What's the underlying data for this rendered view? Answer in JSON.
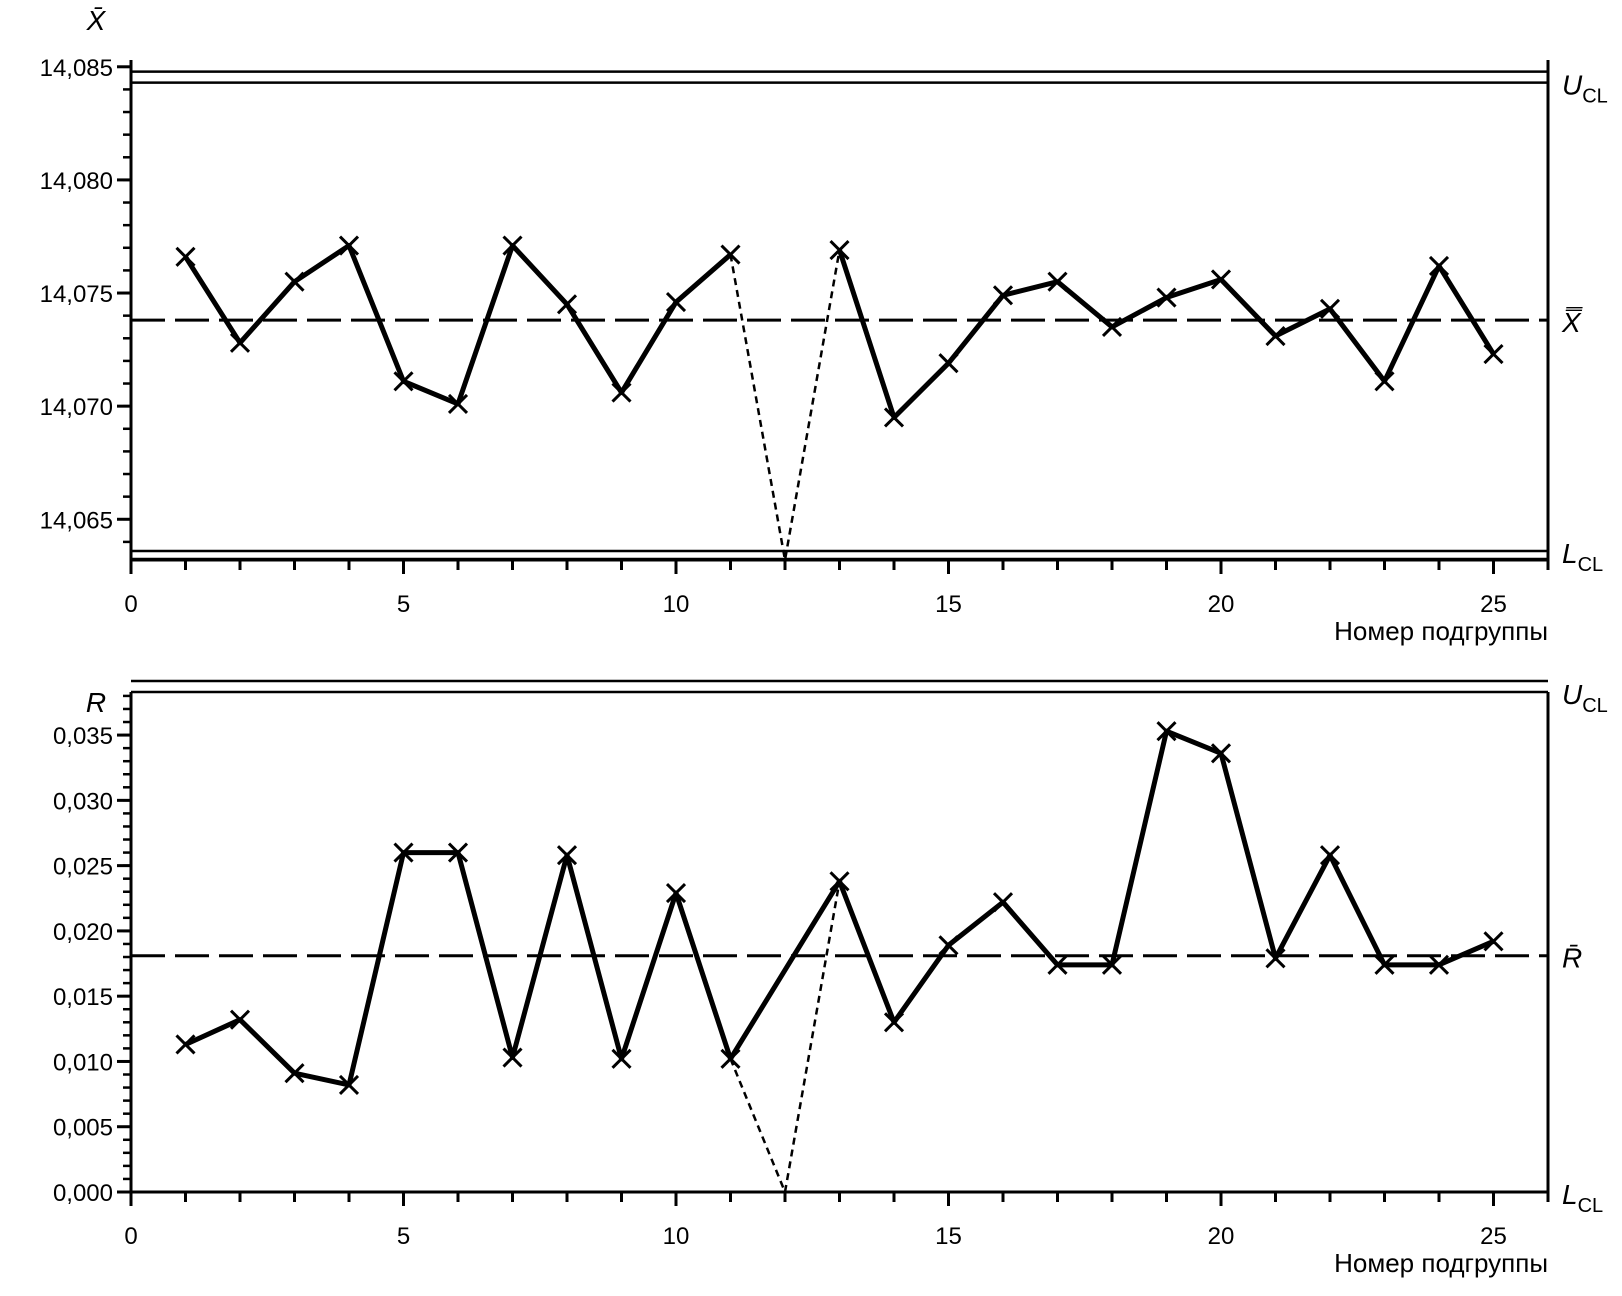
{
  "chart_data": [
    {
      "type": "line",
      "ylabel": "X̄",
      "xlabel": "Номер подгруппы",
      "xlim": [
        0,
        26
      ],
      "ylim": [
        14.0632,
        14.0853
      ],
      "xticks": [
        "0",
        "5",
        "10",
        "15",
        "20",
        "25"
      ],
      "yticks": [
        "14,065",
        "14,070",
        "14,075",
        "14,080",
        "14,085"
      ],
      "ytick_values": [
        14.065,
        14.07,
        14.075,
        14.08,
        14.085
      ],
      "center_line": {
        "label": "X̿",
        "value": 14.0738
      },
      "ucl": {
        "label_main": "U",
        "label_sub": "CL",
        "value": 14.0843
      },
      "lcl": {
        "label_main": "L",
        "label_sub": "CL",
        "value": 14.0636
      },
      "series": [
        {
          "x": [
            1,
            2,
            3,
            4,
            5,
            6,
            7,
            8,
            9,
            10,
            11
          ],
          "values": [
            14.0766,
            14.0728,
            14.0755,
            14.0771,
            14.0711,
            14.0701,
            14.0771,
            14.0745,
            14.0706,
            14.0746,
            14.0767
          ]
        },
        {
          "x": [
            13,
            14,
            15,
            16,
            17,
            18,
            19,
            20,
            21,
            22,
            23,
            24,
            25
          ],
          "values": [
            14.0769,
            14.0695,
            14.0719,
            14.0749,
            14.0755,
            14.0735,
            14.0748,
            14.0756,
            14.0731,
            14.0743,
            14.0711,
            14.0762,
            14.0723
          ]
        }
      ],
      "excluded": {
        "x": 12,
        "value": 14.0632,
        "connect": [
          [
            11,
            14.0767
          ],
          [
            12,
            14.0632
          ],
          [
            13,
            14.0769
          ]
        ]
      },
      "grid": false
    },
    {
      "type": "line",
      "ylabel": "R",
      "xlabel": "Номер подгруппы",
      "xlim": [
        0,
        26
      ],
      "ylim": [
        0,
        0.0383
      ],
      "xticks": [
        "0",
        "5",
        "10",
        "15",
        "20",
        "25"
      ],
      "yticks": [
        "0,000",
        "0,005",
        "0,010",
        "0,015",
        "0,020",
        "0,025",
        "0,030",
        "0,035"
      ],
      "ytick_values": [
        0,
        0.005,
        0.01,
        0.015,
        0.02,
        0.025,
        0.03,
        0.035
      ],
      "center_line": {
        "label": "R̄",
        "value": 0.0181
      },
      "ucl": {
        "label_main": "U",
        "label_sub": "CL",
        "value": 0.0383
      },
      "lcl": {
        "label_main": "L",
        "label_sub": "CL",
        "value": 0
      },
      "series": [
        {
          "x": [
            1,
            2,
            3,
            4,
            5,
            6,
            7,
            8,
            9,
            10,
            11
          ],
          "values": [
            0.0113,
            0.0132,
            0.0091,
            0.0082,
            0.026,
            0.026,
            0.0103,
            0.0258,
            0.0102,
            0.0229,
            0.0102
          ]
        },
        {
          "x": [
            11,
            13,
            14,
            15,
            16,
            17,
            18,
            19,
            20,
            21,
            22,
            23,
            24,
            25
          ],
          "values": [
            0.0102,
            0.0238,
            0.013,
            0.0189,
            0.0222,
            0.0174,
            0.0174,
            0.0353,
            0.0336,
            0.0179,
            0.0258,
            0.0174,
            0.0174,
            0.0192
          ]
        }
      ],
      "excluded": {
        "x": 12,
        "value": 0,
        "connect": [
          [
            11,
            0.0102
          ],
          [
            12,
            0
          ],
          [
            13,
            0.0238
          ]
        ]
      },
      "grid": false
    }
  ]
}
